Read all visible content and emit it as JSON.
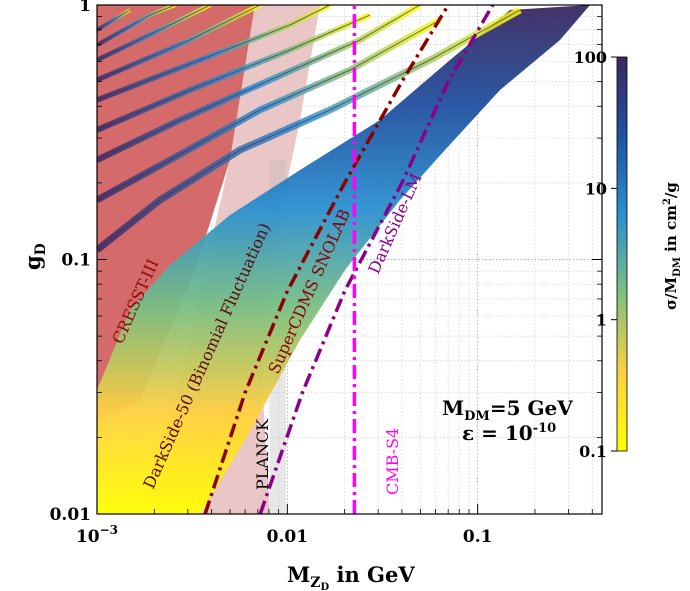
{
  "chart_data": {
    "type": "area",
    "title": "",
    "xlabel": "M",
    "xlabel_sub": "Z",
    "xlabel_subsub": "D",
    "xlabel_suffix": " in GeV",
    "ylabel": "g",
    "ylabel_sub": "D",
    "xscale": "log",
    "yscale": "log",
    "xlim": [
      0.001,
      0.45
    ],
    "ylim": [
      0.01,
      1
    ],
    "xticks": [
      "10",
      "0.01",
      "0.1"
    ],
    "xtick_first_exp": "−3",
    "yticks": [
      "0.01",
      "0.1",
      "1"
    ],
    "grid": true,
    "colorbar": {
      "label": "σ/M",
      "label_sub": "DM",
      "label_suffix": " in cm",
      "label_sup": "2",
      "label_end": "/g",
      "scale": "log",
      "range": [
        0.1,
        100
      ],
      "ticks": [
        "0.1",
        "1",
        "10",
        "100"
      ],
      "colors": [
        "#ffff00",
        "#ffd040",
        "#7cc080",
        "#2a90d0",
        "#2050a0",
        "#3a2860"
      ]
    },
    "annotation": {
      "line1": "M",
      "line1_sub": "DM",
      "line1_rest": "=5 GeV",
      "line2": "ε = 10",
      "line2_sup": "-10"
    },
    "experiments": [
      {
        "name": "CRESST-III",
        "color": "#8b0a0a",
        "style": "shaded",
        "fill": "#d05a5a"
      },
      {
        "name": "DarkSide-50 (Binomial Fluctuation)",
        "color": "#5a0a0a",
        "style": "shaded",
        "fill": "#e8c0c0"
      },
      {
        "name": "PLANCK",
        "color": "#000000",
        "style": "shaded",
        "fill": "#cccccc"
      },
      {
        "name": "SuperCDMS SNOLAB",
        "color": "#8b0000",
        "style": "dash-dot"
      },
      {
        "name": "DarkSide-LM",
        "color": "#8b008b",
        "style": "dash-dot"
      },
      {
        "name": "CMB-S4",
        "color": "#ff00ff",
        "style": "dash-dot"
      }
    ],
    "limit_lines": [
      {
        "name": "SuperCDMS SNOLAB",
        "points": [
          [
            0.0037,
            0.01
          ],
          [
            0.006,
            0.03
          ],
          [
            0.01,
            0.075
          ],
          [
            0.02,
            0.2
          ],
          [
            0.04,
            0.5
          ],
          [
            0.07,
            1.0
          ]
        ]
      },
      {
        "name": "DarkSide-LM",
        "points": [
          [
            0.0072,
            0.01
          ],
          [
            0.012,
            0.03
          ],
          [
            0.02,
            0.075
          ],
          [
            0.04,
            0.2
          ],
          [
            0.07,
            0.5
          ],
          [
            0.12,
            1.0
          ]
        ]
      },
      {
        "name": "CMB-S4",
        "points": [
          [
            0.0225,
            0.01
          ],
          [
            0.0225,
            1.0
          ]
        ]
      }
    ]
  }
}
